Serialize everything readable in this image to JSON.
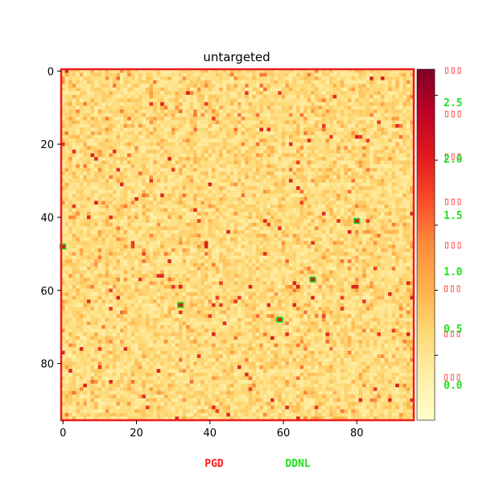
{
  "chart_data": {
    "type": "heatmap",
    "title": "untargeted",
    "xlabel": "",
    "ylabel": "",
    "grid_size": 96,
    "x_ticks": [
      "0",
      "20",
      "40",
      "60",
      "80"
    ],
    "y_ticks": [
      "0",
      "20",
      "40",
      "60",
      "80"
    ],
    "colorbar": {
      "colormap": "YlOrRd",
      "tick_labels": [
        "0.5",
        "1.0",
        "1.5",
        "2.0",
        "2.5"
      ],
      "range": [
        0,
        2.7
      ]
    },
    "background_value": 0.45,
    "highlight_cells": [
      {
        "x": 0,
        "y": 48,
        "value": 2.5
      },
      {
        "x": 32,
        "y": 64,
        "value": 2.5
      },
      {
        "x": 59,
        "y": 68,
        "value": 2.5
      },
      {
        "x": 68,
        "y": 57,
        "value": 2.5
      },
      {
        "x": 80,
        "y": 41,
        "value": 2.5
      }
    ],
    "legend": [
      {
        "label": "PGD",
        "color": "#ff2020"
      },
      {
        "label": "DDNL",
        "color": "#20e020"
      }
    ],
    "colorbar_markers": {
      "red_labels": [
        "▯▯▯",
        "▯▯▯",
        "▯▯▯",
        "▯▯▯",
        "▯▯▯",
        "▯▯▯",
        "▯▯▯",
        "▯▯▯"
      ],
      "green_labels": [
        "2.5",
        "2.0",
        "1.5",
        "1.0",
        "0.5",
        "0.0"
      ]
    }
  },
  "colors": {
    "pgd": "#ff2020",
    "ddnl": "#20e020",
    "frame": "#ee1c1c"
  }
}
